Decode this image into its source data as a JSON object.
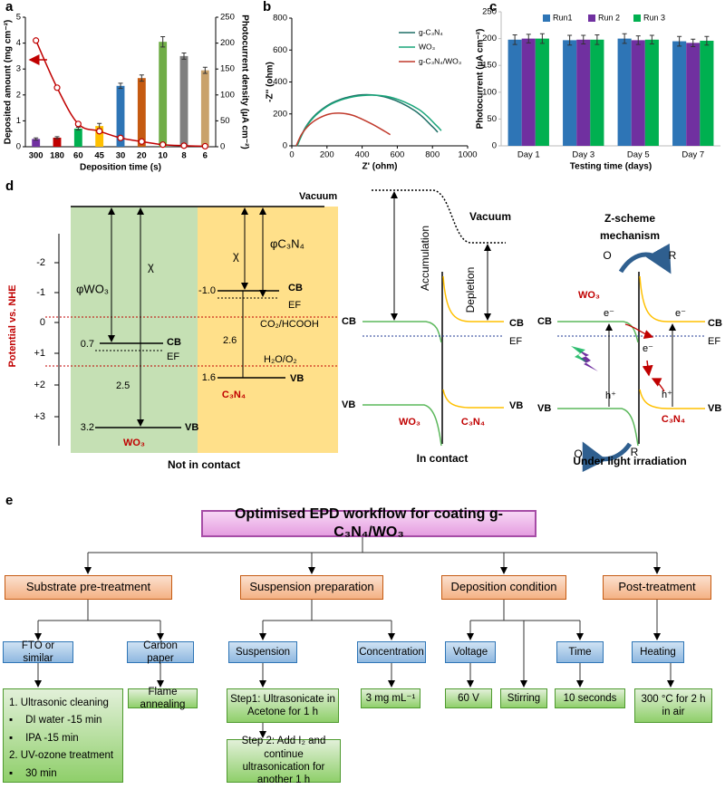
{
  "panel_labels": [
    "a",
    "b",
    "c",
    "d",
    "e"
  ],
  "chart_data": [
    {
      "type": "bar",
      "categories": [
        "300",
        "180",
        "60",
        "45",
        "30",
        "20",
        "10",
        "8",
        "6"
      ],
      "xlabel": "Deposition time (s)",
      "ylabel": "Deposited amount (mg cm⁻²)",
      "y2label": "Photocurrent density (µA cm⁻²)",
      "series": [
        {
          "type": "bar",
          "colors": [
            "#7030a0",
            "#c00000",
            "#00b050",
            "#ffc000",
            "#2e75b6",
            "#c55a11",
            "#70ad47",
            "#7f7f7f",
            "#c9a26b"
          ],
          "values": [
            0.3,
            0.35,
            0.7,
            0.8,
            2.35,
            2.65,
            4.05,
            3.5,
            2.95
          ],
          "errors": [
            0.04,
            0.04,
            0.05,
            0.1,
            0.1,
            0.12,
            0.2,
            0.12,
            0.12
          ]
        },
        {
          "type": "line",
          "axis": "y2",
          "color": "#c00000",
          "values": [
            205,
            114,
            44,
            30,
            17,
            10,
            4,
            2,
            1
          ]
        }
      ],
      "ylim": [
        0,
        5
      ],
      "yticks": [
        0,
        1,
        2,
        3,
        4,
        5
      ],
      "y2lim": [
        0,
        250
      ],
      "y2ticks": [
        0,
        50,
        100,
        150,
        200,
        250
      ]
    },
    {
      "type": "line",
      "xlabel": "Z' (ohm)",
      "ylabel": "-Z'' (ohm)",
      "legend": "upper right",
      "xlim": [
        0,
        1000
      ],
      "xticks": [
        0,
        200,
        400,
        600,
        800,
        1000
      ],
      "ylim": [
        0,
        800
      ],
      "yticks": [
        0,
        200,
        400,
        600,
        800
      ],
      "series": [
        {
          "name": "g-C₃N₄",
          "color": "#1f6f66",
          "x": [
            30,
            80,
            150,
            250,
            400,
            550,
            700,
            800,
            830
          ],
          "values": [
            0,
            120,
            210,
            280,
            320,
            300,
            220,
            120,
            85
          ]
        },
        {
          "name": "WO₃",
          "color": "#19a67a",
          "x": [
            30,
            80,
            150,
            250,
            400,
            560,
            720,
            820,
            850
          ],
          "values": [
            0,
            115,
            205,
            275,
            315,
            305,
            230,
            130,
            95
          ]
        },
        {
          "name": "g-C₃N₄/WO₃",
          "color": "#c0392b",
          "x": [
            25,
            60,
            120,
            200,
            270,
            350,
            450,
            530,
            560
          ],
          "values": [
            0,
            80,
            150,
            195,
            205,
            190,
            140,
            90,
            70
          ]
        }
      ]
    },
    {
      "type": "grouped_bar",
      "categories": [
        "Day 1",
        "Day 3",
        "Day 5",
        "Day 7"
      ],
      "xlabel": "Testing time (days)",
      "ylabel": "Photocurrent (µA cm⁻²)",
      "legend": "upper center",
      "ylim": [
        0,
        250
      ],
      "yticks": [
        0,
        50,
        100,
        150,
        200,
        250
      ],
      "series": [
        {
          "name": "Run1",
          "color": "#2e75b6",
          "values": [
            198,
            197,
            200,
            195
          ],
          "errors": [
            9,
            9,
            9,
            9
          ]
        },
        {
          "name": "Run 2",
          "color": "#7030a0",
          "values": [
            200,
            198,
            197,
            192
          ],
          "errors": [
            8,
            8,
            8,
            7
          ]
        },
        {
          "name": "Run 3",
          "color": "#00b050",
          "values": [
            200,
            198,
            198,
            196
          ],
          "errors": [
            9,
            9,
            8,
            8
          ]
        }
      ]
    }
  ],
  "panel_d": {
    "left": {
      "vacuum": "Vacuum",
      "axis_label": "Potential vs. NHE",
      "axis_ticks": [
        "-2",
        "-1",
        "0",
        "+1",
        "+2",
        "+3"
      ],
      "phi_wo3": "φWO₃",
      "chi_wo3": "χ",
      "wo3_cb_value": "0.7",
      "wo3_cb": "CB",
      "wo3_ef": "EF",
      "wo3_gap": "2.5",
      "wo3_vb_value": "3.2",
      "wo3_vb": "VB",
      "wo3": "WO₃",
      "chi_c3n4": "χ",
      "phi_c3n4": "φC₃N₄",
      "c3n4_cb_value": "-1.0",
      "c3n4_cb": "CB",
      "c3n4_ef": "EF",
      "co2": "CO₂/HCOOH",
      "c3n4_gap": "2.6",
      "h2o": "H₂O/O₂",
      "c3n4_vb_value": "1.6",
      "c3n4_vb": "VB",
      "c3n4": "C₃N₄",
      "caption": "Not in contact"
    },
    "middle": {
      "vacuum": "Vacuum",
      "accumulation": "Accumulation",
      "depletion": "Depletion",
      "cb_left": "CB",
      "cb_right": "CB",
      "ef": "EF",
      "vb_left": "VB",
      "vb_right": "VB",
      "wo3": "WO₃",
      "c3n4": "C₃N₄",
      "caption": "In contact"
    },
    "right": {
      "title_lines": [
        "Z-scheme",
        "mechanism"
      ],
      "o_top": "O",
      "r_top": "R",
      "wo3": "WO₃",
      "e1": "e⁻",
      "e2": "e⁻",
      "cb_left": "CB",
      "cb_right": "CB",
      "ef": "EF",
      "e3": "e⁻",
      "h1": "h⁺",
      "h2": "h⁺",
      "vb_left": "VB",
      "vb_right": "VB",
      "o_bottom": "O",
      "r_bottom": "R",
      "c3n4": "C₃N₄",
      "caption": "Under light irradiation"
    }
  },
  "panel_e": {
    "title": "Optimised EPD workflow for coating g-C₃N₄/WO₃",
    "sections": [
      "Substrate pre-treatment",
      "Suspension preparation",
      "Deposition condition",
      "Post-treatment"
    ],
    "items": [
      "FTO or similar",
      "Carbon paper",
      "Suspension",
      "Concentration",
      "Voltage",
      "Time",
      "Heating"
    ],
    "cleaning": [
      "1. Ultrasonic cleaning",
      "DI water -15 min",
      "IPA -15 min",
      "2. UV-ozone treatment",
      "30 min"
    ],
    "steps": [
      "Flame annealing",
      "Step1: Ultrasonicate in Acetone for 1 h",
      "Step 2: Add I₂ and continue ultrasonication for another 1 h",
      "3 mg mL⁻¹",
      "60 V",
      "Stirring",
      "10 seconds",
      "300 °C for 2 h in air"
    ]
  }
}
